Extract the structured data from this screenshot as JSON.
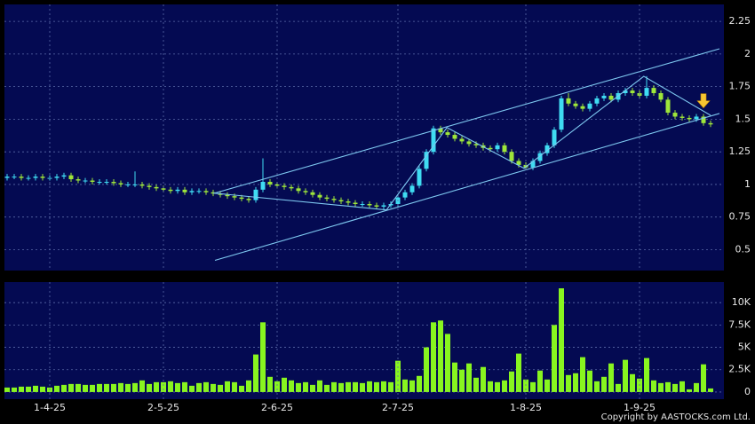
{
  "chart_data": [
    {
      "type": "candlestick",
      "up_color": "#3fdcf2",
      "down_color": "#9ee63a",
      "line_color": "#7ec8f0",
      "arrow_color": "#f7c531",
      "ylim": [
        0.34,
        2.38
      ],
      "yticks": [
        0.5,
        0.75,
        1,
        1.25,
        1.5,
        1.75,
        2,
        2.25
      ],
      "grid": true,
      "open": [
        1.05,
        1.06,
        1.06,
        1.05,
        1.05,
        1.06,
        1.05,
        1.05,
        1.06,
        1.07,
        1.04,
        1.03,
        1.03,
        1.02,
        1.02,
        1.02,
        1.01,
        1.0,
        1.0,
        1.0,
        0.99,
        0.98,
        0.97,
        0.96,
        0.95,
        0.96,
        0.94,
        0.95,
        0.95,
        0.94,
        0.93,
        0.92,
        0.91,
        0.9,
        0.89,
        0.88,
        0.96,
        1.02,
        1.0,
        0.99,
        0.98,
        0.97,
        0.95,
        0.94,
        0.92,
        0.9,
        0.89,
        0.88,
        0.87,
        0.86,
        0.85,
        0.85,
        0.84,
        0.83,
        0.84,
        0.85,
        0.9,
        0.94,
        0.99,
        1.12,
        1.25,
        1.43,
        1.4,
        1.38,
        1.35,
        1.33,
        1.31,
        1.3,
        1.28,
        1.27,
        1.3,
        1.25,
        1.18,
        1.15,
        1.13,
        1.18,
        1.24,
        1.3,
        1.42,
        1.66,
        1.62,
        1.6,
        1.58,
        1.62,
        1.66,
        1.68,
        1.65,
        1.7,
        1.72,
        1.7,
        1.68,
        1.74,
        1.7,
        1.65,
        1.55,
        1.52,
        1.51,
        1.5,
        1.52,
        1.47
      ],
      "high": [
        1.08,
        1.08,
        1.08,
        1.07,
        1.08,
        1.08,
        1.07,
        1.08,
        1.09,
        1.09,
        1.06,
        1.05,
        1.05,
        1.04,
        1.04,
        1.04,
        1.03,
        1.02,
        1.1,
        1.02,
        1.01,
        1.0,
        0.99,
        0.98,
        0.98,
        0.98,
        0.97,
        0.97,
        0.97,
        0.96,
        0.95,
        0.94,
        0.93,
        0.92,
        0.91,
        0.98,
        1.2,
        1.04,
        1.02,
        1.01,
        1.0,
        0.99,
        0.97,
        0.96,
        0.94,
        0.92,
        0.91,
        0.9,
        0.89,
        0.88,
        0.87,
        0.87,
        0.86,
        0.86,
        0.87,
        0.92,
        0.96,
        1.01,
        1.14,
        1.27,
        1.45,
        1.45,
        1.42,
        1.4,
        1.37,
        1.35,
        1.33,
        1.32,
        1.3,
        1.32,
        1.32,
        1.27,
        1.2,
        1.17,
        1.2,
        1.26,
        1.32,
        1.44,
        1.68,
        1.7,
        1.64,
        1.62,
        1.64,
        1.68,
        1.7,
        1.7,
        1.72,
        1.74,
        1.74,
        1.72,
        1.83,
        1.76,
        1.72,
        1.67,
        1.57,
        1.54,
        1.53,
        1.54,
        1.54,
        1.49
      ],
      "low": [
        1.03,
        1.04,
        1.03,
        1.03,
        1.03,
        1.03,
        1.03,
        1.03,
        1.04,
        1.02,
        1.01,
        1.01,
        1.0,
        1.0,
        1.0,
        0.99,
        0.98,
        0.98,
        0.98,
        0.97,
        0.96,
        0.95,
        0.94,
        0.93,
        0.93,
        0.92,
        0.92,
        0.93,
        0.92,
        0.91,
        0.9,
        0.89,
        0.88,
        0.87,
        0.86,
        0.86,
        0.94,
        0.98,
        0.97,
        0.96,
        0.95,
        0.93,
        0.92,
        0.9,
        0.88,
        0.87,
        0.86,
        0.85,
        0.84,
        0.83,
        0.83,
        0.82,
        0.81,
        0.81,
        0.82,
        0.83,
        0.88,
        0.92,
        0.97,
        1.1,
        1.23,
        1.38,
        1.36,
        1.33,
        1.31,
        1.29,
        1.28,
        1.26,
        1.25,
        1.25,
        1.23,
        1.16,
        1.13,
        1.11,
        1.11,
        1.16,
        1.22,
        1.28,
        1.4,
        1.6,
        1.58,
        1.56,
        1.56,
        1.6,
        1.64,
        1.63,
        1.63,
        1.68,
        1.68,
        1.66,
        1.66,
        1.68,
        1.63,
        1.53,
        1.5,
        1.49,
        1.48,
        1.48,
        1.45,
        1.44
      ],
      "close": [
        1.06,
        1.06,
        1.05,
        1.05,
        1.06,
        1.05,
        1.05,
        1.06,
        1.07,
        1.04,
        1.03,
        1.03,
        1.02,
        1.02,
        1.02,
        1.01,
        1.0,
        1.0,
        1.0,
        0.99,
        0.98,
        0.97,
        0.96,
        0.95,
        0.96,
        0.94,
        0.95,
        0.95,
        0.94,
        0.93,
        0.92,
        0.91,
        0.9,
        0.89,
        0.88,
        0.96,
        1.02,
        1.0,
        0.99,
        0.98,
        0.97,
        0.95,
        0.94,
        0.92,
        0.9,
        0.89,
        0.88,
        0.87,
        0.86,
        0.85,
        0.85,
        0.84,
        0.83,
        0.84,
        0.85,
        0.9,
        0.94,
        0.99,
        1.12,
        1.25,
        1.43,
        1.4,
        1.38,
        1.35,
        1.33,
        1.31,
        1.3,
        1.28,
        1.27,
        1.3,
        1.25,
        1.18,
        1.15,
        1.13,
        1.18,
        1.24,
        1.3,
        1.42,
        1.66,
        1.62,
        1.6,
        1.58,
        1.62,
        1.66,
        1.68,
        1.65,
        1.7,
        1.72,
        1.7,
        1.68,
        1.74,
        1.7,
        1.65,
        1.55,
        1.52,
        1.51,
        1.5,
        1.52,
        1.47,
        1.46
      ],
      "trend_lines": [
        {
          "x": [
            29.25,
            100.25
          ],
          "y": [
            0.934,
            2.04
          ]
        },
        {
          "x": [
            29.25,
            100.25
          ],
          "y": [
            0.418,
            1.544
          ]
        },
        {
          "x": [
            29,
            53.4,
            61.9,
            72.75,
            89.6,
            99
          ],
          "y": [
            0.934,
            0.805,
            1.436,
            1.124,
            1.829,
            1.53
          ]
        }
      ],
      "arrow": {
        "x": 98,
        "y": 1.6
      }
    },
    {
      "type": "bar",
      "color": "#88f51f",
      "ylim": [
        -800,
        12300
      ],
      "yticks": [
        0,
        {
          "value": 2500,
          "label": "2.5K"
        },
        {
          "value": 5000,
          "label": "5K"
        },
        {
          "value": 7500,
          "label": "7.5K"
        },
        {
          "value": 10000,
          "label": "10K"
        }
      ],
      "grid": true,
      "categories": [
        null,
        null,
        null,
        null,
        null,
        null,
        "1-4-25",
        null,
        null,
        null,
        null,
        null,
        null,
        null,
        null,
        null,
        null,
        null,
        null,
        null,
        null,
        null,
        "2-5-25",
        null,
        null,
        null,
        null,
        null,
        null,
        null,
        null,
        null,
        null,
        null,
        null,
        null,
        null,
        null,
        "2-6-25",
        null,
        null,
        null,
        null,
        null,
        null,
        null,
        null,
        null,
        null,
        null,
        null,
        null,
        null,
        null,
        null,
        "2-7-25",
        null,
        null,
        null,
        null,
        null,
        null,
        null,
        null,
        null,
        null,
        null,
        null,
        null,
        null,
        null,
        null,
        null,
        "1-8-25",
        null,
        null,
        null,
        null,
        null,
        null,
        null,
        null,
        null,
        null,
        null,
        null,
        null,
        null,
        null,
        "1-9-25",
        null,
        null,
        null,
        null,
        null,
        null,
        null,
        null,
        null,
        null
      ],
      "values": [
        500,
        500,
        600,
        600,
        700,
        600,
        500,
        700,
        800,
        900,
        900,
        800,
        800,
        900,
        900,
        900,
        1000,
        900,
        1000,
        1300,
        900,
        1100,
        1100,
        1200,
        1000,
        1100,
        700,
        1000,
        1100,
        900,
        800,
        1200,
        1100,
        700,
        1300,
        4200,
        7800,
        1700,
        1200,
        1600,
        1300,
        1000,
        1100,
        800,
        1300,
        800,
        1100,
        1000,
        1100,
        1100,
        1000,
        1200,
        1100,
        1200,
        1100,
        3500,
        1400,
        1300,
        1800,
        5000,
        7800,
        8000,
        6500,
        3300,
        2500,
        3200,
        1600,
        2800,
        1200,
        1100,
        1300,
        2300,
        4300,
        1400,
        1100,
        2400,
        1400,
        7500,
        11600,
        1900,
        2100,
        3900,
        2400,
        1200,
        1700,
        3200,
        900,
        3600,
        2000,
        1500,
        3800,
        1300,
        1000,
        1100,
        900,
        1200,
        300,
        1000,
        3100,
        400
      ]
    }
  ],
  "copyright": "Copyright by AASTOCKS.com Ltd."
}
